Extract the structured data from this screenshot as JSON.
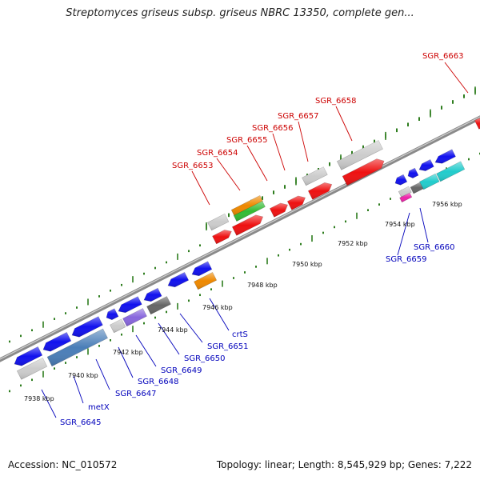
{
  "title": "Streptomyces griseus subsp. griseus NBRC 13350, complete gen...",
  "footer": {
    "accession": "Accession: NC_010572",
    "summary": "Topology: linear; Length: 8,545,929 bp; Genes: 7,222"
  },
  "colors": {
    "backbone": "#8a8a8a",
    "tick": "#2e7d1e",
    "label_top": "#cc0000",
    "label_bottom": "#0000bb"
  },
  "scale_labels": [
    "7938 kbp",
    "7940 kbp",
    "7942 kbp",
    "7944 kbp",
    "7946 kbp",
    "7948 kbp",
    "7950 kbp",
    "7952 kbp",
    "7954 kbp",
    "7956 kbp"
  ],
  "top_genes": [
    "SGR_6653",
    "SGR_6654",
    "SGR_6655",
    "SGR_6656",
    "SGR_6657",
    "SGR_6658",
    "SGR_6663"
  ],
  "bottom_genes": [
    "SGR_6645",
    "metX",
    "SGR_6647",
    "SGR_6648",
    "SGR_6649",
    "SGR_6650",
    "SGR_6651",
    "crtS",
    "SGR_6659",
    "SGR_6660"
  ]
}
